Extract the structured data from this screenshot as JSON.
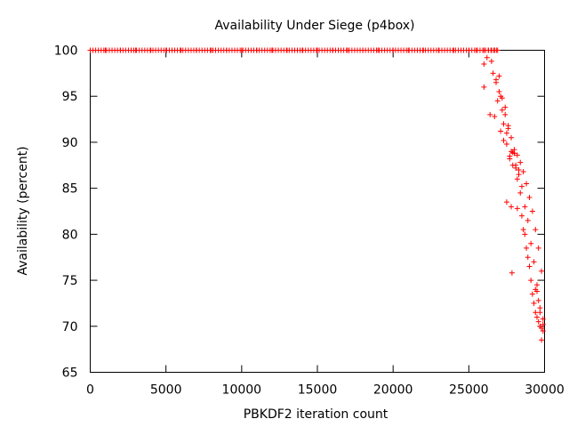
{
  "chart_data": {
    "type": "scatter",
    "title": "Availability Under Siege (p4box)",
    "xlabel": "PBKDF2 iteration count",
    "ylabel": "Availability (percent)",
    "xlim": [
      0,
      30000
    ],
    "ylim": [
      65,
      100
    ],
    "x_ticks": [
      0,
      5000,
      10000,
      15000,
      20000,
      25000,
      30000
    ],
    "y_ticks": [
      65,
      70,
      75,
      80,
      85,
      90,
      95,
      100
    ],
    "grid": false,
    "legend": "none",
    "marker": "plus",
    "series_color": "#ff0000",
    "series": [
      {
        "x": [
          0,
          1000,
          2000,
          3000,
          4000,
          5000,
          6000,
          7000,
          8000,
          9000,
          10000,
          11000,
          12000,
          13000,
          14000,
          15000,
          16000,
          17000,
          18000,
          19000,
          20000,
          21000,
          22000,
          23000,
          24000,
          25000,
          25500,
          26000,
          26100,
          26300,
          26500,
          26700,
          26900,
          26000,
          26000,
          26200,
          26400,
          26500,
          26600,
          26700,
          26800,
          26900,
          27000,
          27100,
          27200,
          27300,
          27400,
          27500,
          27600,
          27700,
          27800,
          27900,
          28000,
          28100,
          28200,
          28300,
          28400,
          28500,
          28600,
          28700,
          28800,
          28900,
          29000,
          29100,
          29200,
          29300,
          29400,
          29500,
          29600,
          29700,
          29800,
          29900,
          26800,
          27000,
          27200,
          27400,
          27600,
          27800,
          28000,
          28200,
          28400,
          28600,
          28800,
          29000,
          29200,
          29400,
          29600,
          29800,
          27100,
          27300,
          27500,
          27700,
          27900,
          28100,
          28300,
          28500,
          28700,
          28900,
          29100,
          29300,
          29500,
          29700,
          29900,
          27500,
          27800,
          28200,
          27850,
          29400,
          29500,
          29600,
          29700,
          29800,
          29900
        ],
        "y": [
          100,
          100,
          100,
          100,
          100,
          100,
          100,
          100,
          100,
          100,
          100,
          100,
          100,
          100,
          100,
          100,
          100,
          100,
          100,
          100,
          100,
          100,
          100,
          100,
          100,
          100,
          100,
          100,
          100,
          100,
          100,
          100,
          100,
          98.5,
          96,
          99.2,
          93,
          98.8,
          97.5,
          92.8,
          96.8,
          94.5,
          97.2,
          95,
          93.5,
          92,
          93.8,
          91,
          91.5,
          88.5,
          89,
          87.5,
          88.8,
          87.2,
          86,
          87,
          84.5,
          82,
          80.5,
          80,
          78.5,
          77.5,
          76.5,
          75,
          73.5,
          72.5,
          71.5,
          71,
          70.5,
          70,
          69.8,
          69.5,
          96.5,
          95.5,
          94.8,
          93,
          91.8,
          90.5,
          89.2,
          88.6,
          87.8,
          86.8,
          85.5,
          84,
          82.5,
          80.5,
          78.5,
          76,
          91.2,
          90.2,
          89.8,
          88.2,
          88.9,
          87.5,
          86.5,
          85.2,
          83,
          81.5,
          79,
          77,
          74.5,
          72,
          70.8,
          83.5,
          83,
          82.8,
          75.8,
          74,
          73.8,
          72.8,
          71.5,
          68.5,
          70.2
        ]
      }
    ]
  }
}
